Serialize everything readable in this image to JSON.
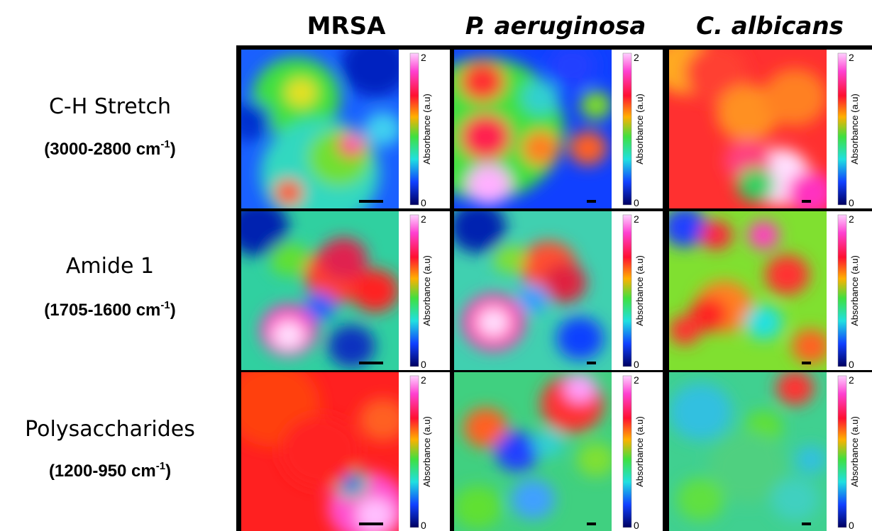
{
  "columns": [
    "MRSA",
    "P. aeruginosa",
    "C. albicans"
  ],
  "rows": [
    {
      "label": "C-H Stretch",
      "range": "(3000-2800 cm",
      "superscript": "-1",
      "closing": ")"
    },
    {
      "label": "Amide 1",
      "range": "(1705-1600 cm",
      "superscript": "-1",
      "closing": ")"
    },
    {
      "label": "Polysaccharides",
      "range": "(1200-950 cm",
      "superscript": "-1",
      "closing": ")"
    }
  ],
  "colorbar": {
    "label": "Absorbance (a.u)",
    "ticks": [
      0,
      2
    ]
  }
}
